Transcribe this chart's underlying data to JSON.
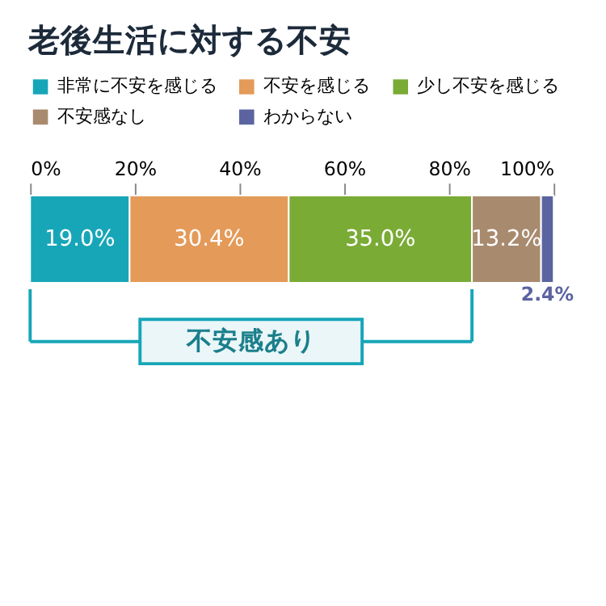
{
  "chart_data": {
    "type": "bar",
    "orientation": "horizontal",
    "stacked": true,
    "title": "老後生活に対する不安",
    "categories": [
      null
    ],
    "series": [
      {
        "name": "非常に不安を感じる",
        "color": "#17a6b8",
        "values": [
          19.0
        ],
        "value_labels": [
          "19.0%"
        ]
      },
      {
        "name": "不安を感じる",
        "color": "#e49a58",
        "values": [
          30.4
        ],
        "value_labels": [
          "30.4%"
        ]
      },
      {
        "name": "少し不安を感じる",
        "color": "#7aab35",
        "values": [
          35.0
        ],
        "value_labels": [
          "35.0%"
        ]
      },
      {
        "name": "不安感なし",
        "color": "#a88a6e",
        "values": [
          13.2
        ],
        "value_labels": [
          "13.2%"
        ]
      },
      {
        "name": "わからない",
        "color": "#5b64a0",
        "values": [
          2.4
        ],
        "value_labels": [
          "2.4%"
        ]
      }
    ],
    "xlim": [
      0,
      100
    ],
    "xticks": [
      {
        "value": 0,
        "label": "0%"
      },
      {
        "value": 20,
        "label": "20%"
      },
      {
        "value": 40,
        "label": "40%"
      },
      {
        "value": 60,
        "label": "60%"
      },
      {
        "value": 80,
        "label": "80%"
      },
      {
        "value": 100,
        "label": "100%"
      }
    ],
    "legend": "top left",
    "annotations": [
      "不安感あり"
    ]
  }
}
